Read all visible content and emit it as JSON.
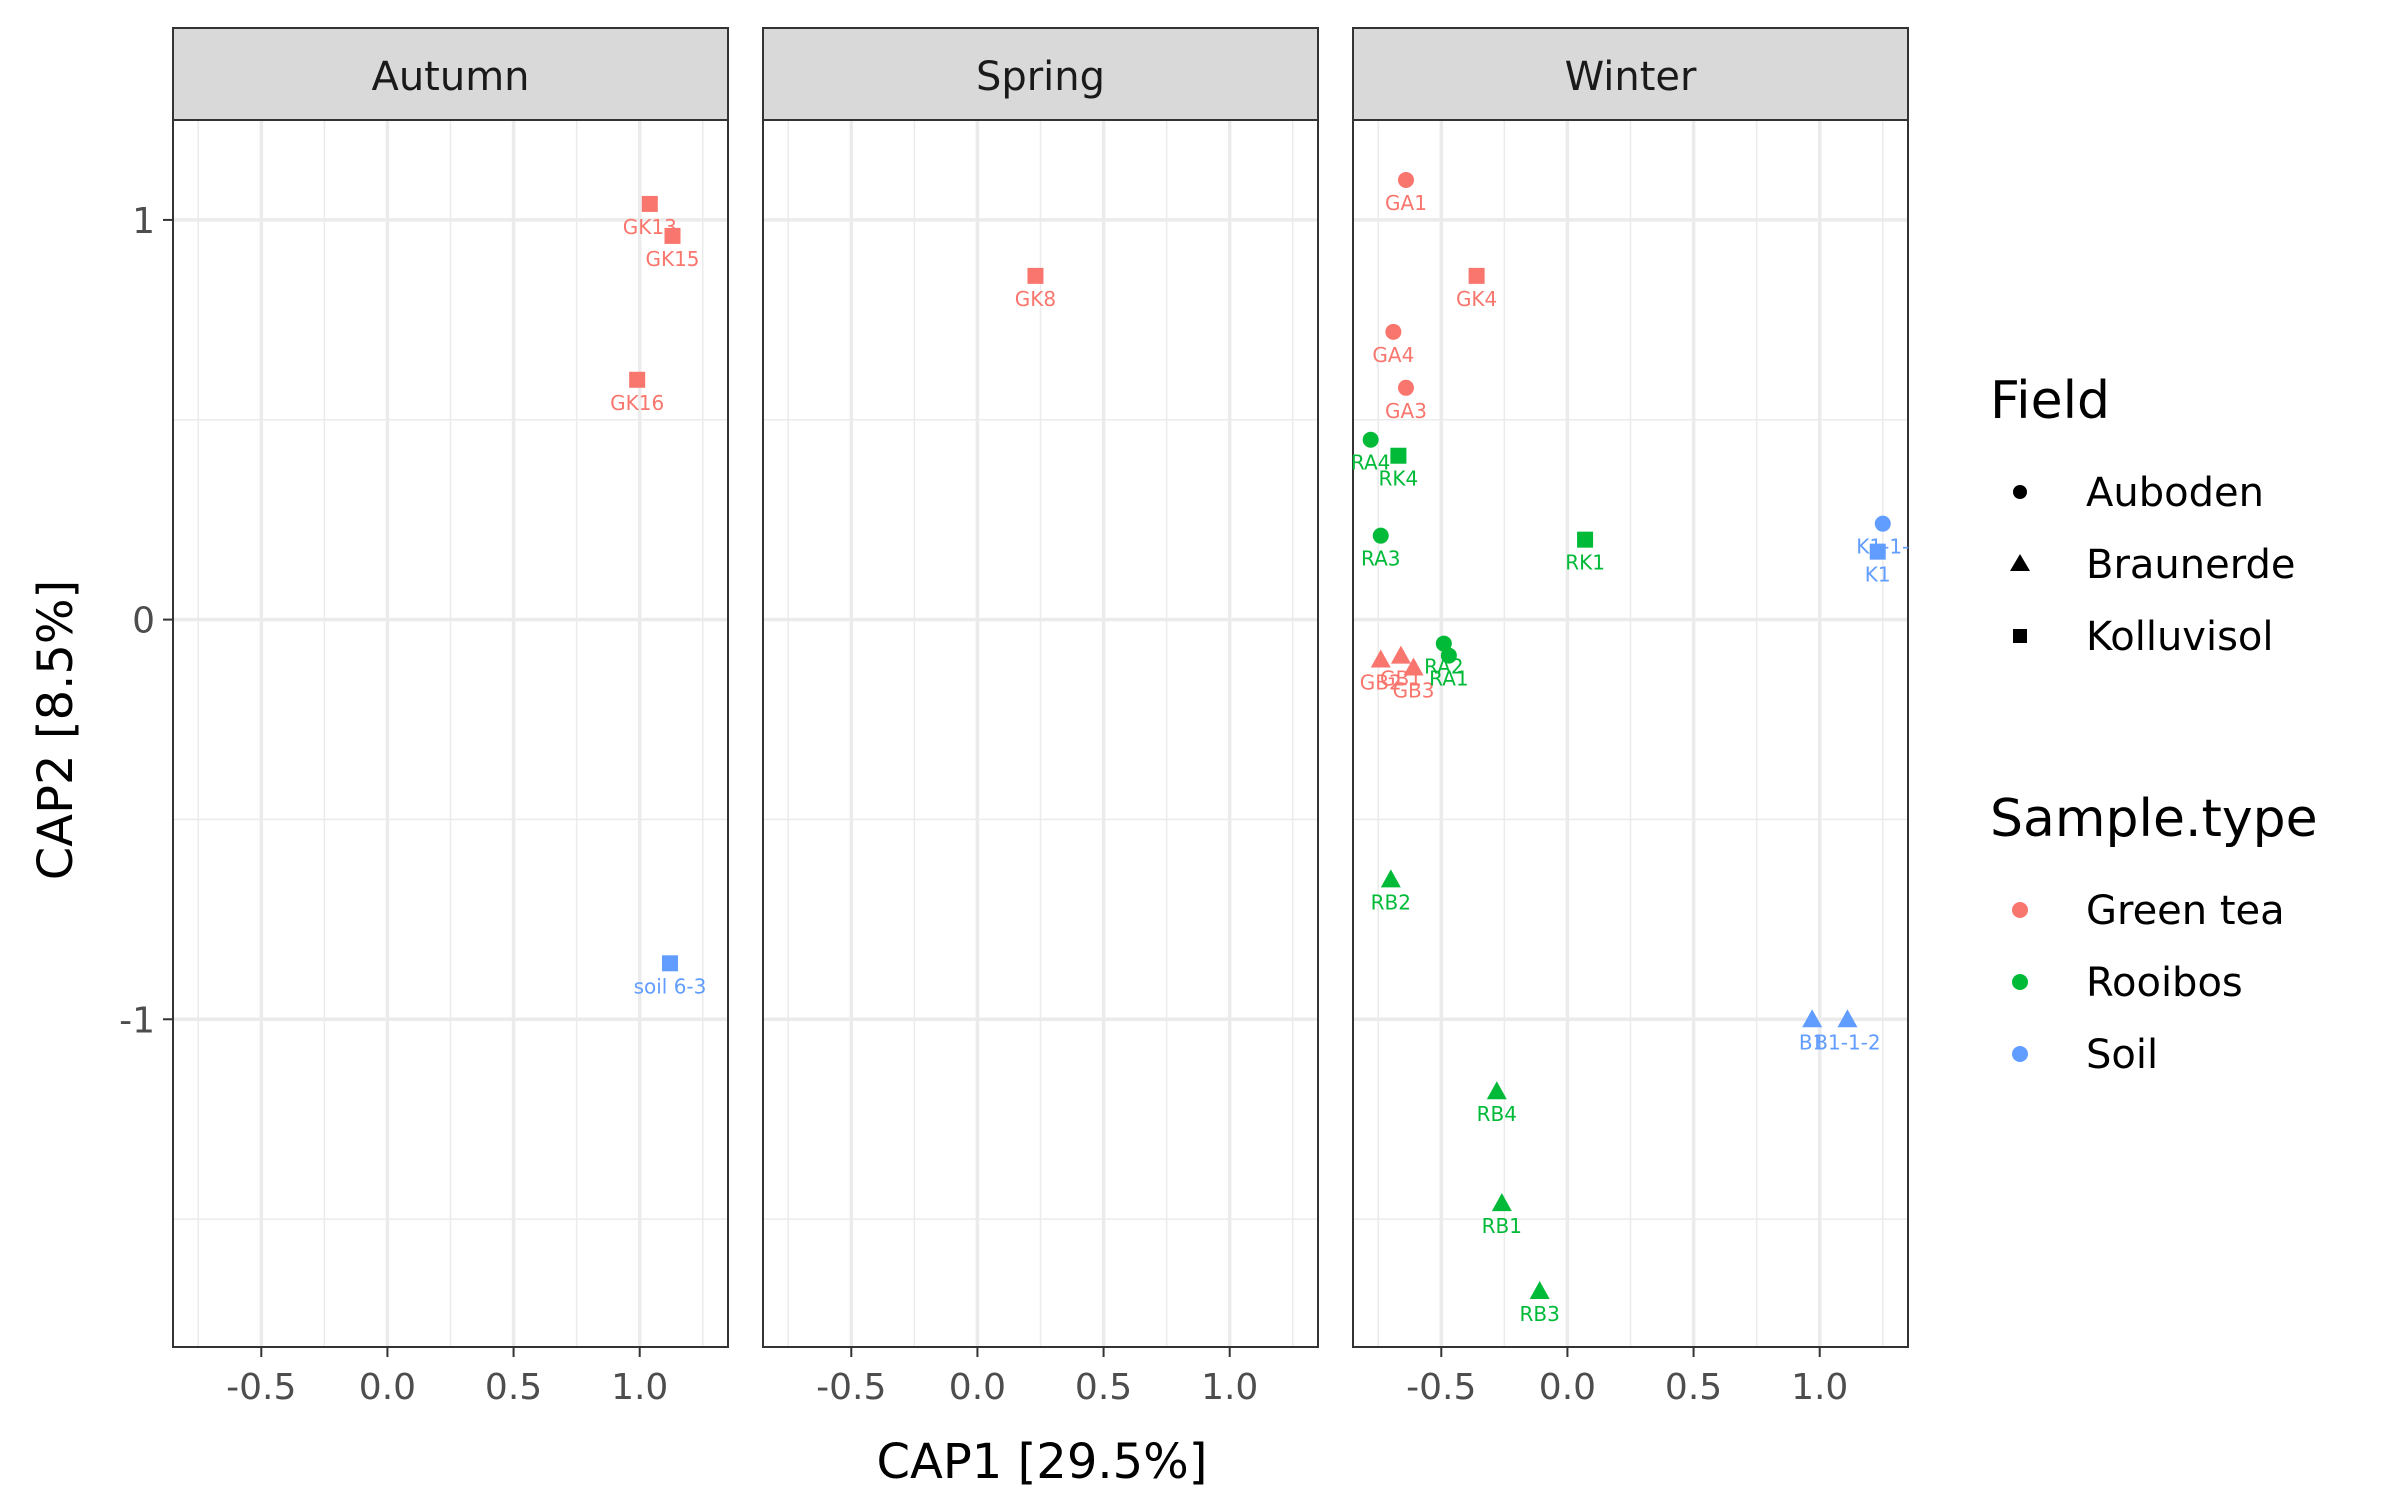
{
  "colors": {
    "Green tea": "#F8766D",
    "Rooibos": "#00BA38",
    "Soil": "#619CFF"
  },
  "chart_data": {
    "type": "scatter",
    "title": "",
    "xlabel": "CAP1   [29.5%]",
    "ylabel": "CAP2   [8.5%]",
    "xlim": [
      -0.85,
      1.35
    ],
    "ylim": [
      -1.82,
      1.25
    ],
    "x_ticks": [
      -0.5,
      0.0,
      0.5,
      1.0
    ],
    "x_tick_labels": [
      "-0.5",
      "0.0",
      "0.5",
      "1.0"
    ],
    "y_ticks": [
      1,
      0,
      -1
    ],
    "y_tick_labels": [
      "1",
      "0",
      "-1"
    ],
    "grid": true,
    "facets": [
      "Autumn",
      "Spring",
      "Winter"
    ],
    "legend_position": "right",
    "legends": [
      {
        "title": "Field",
        "entries": [
          {
            "label": "Auboden",
            "shape": "circle"
          },
          {
            "label": "Braunerde",
            "shape": "triangle"
          },
          {
            "label": "Kolluvisol",
            "shape": "square"
          }
        ]
      },
      {
        "title": "Sample.type",
        "entries": [
          {
            "label": "Green tea",
            "color": "#F8766D"
          },
          {
            "label": "Rooibos",
            "color": "#00BA38"
          },
          {
            "label": "Soil",
            "color": "#619CFF"
          }
        ]
      }
    ],
    "points": [
      {
        "facet": "Autumn",
        "x": 1.04,
        "y": 1.04,
        "label": "GK13",
        "field": "Kolluvisol",
        "type": "Green tea"
      },
      {
        "facet": "Autumn",
        "x": 1.13,
        "y": 0.96,
        "label": "GK15",
        "field": "Kolluvisol",
        "type": "Green tea"
      },
      {
        "facet": "Autumn",
        "x": 0.99,
        "y": 0.6,
        "label": "GK16",
        "field": "Kolluvisol",
        "type": "Green tea"
      },
      {
        "facet": "Autumn",
        "x": 1.12,
        "y": -0.86,
        "label": "soil 6-3",
        "field": "Kolluvisol",
        "type": "Soil"
      },
      {
        "facet": "Spring",
        "x": 0.23,
        "y": 0.86,
        "label": "GK8",
        "field": "Kolluvisol",
        "type": "Green tea"
      },
      {
        "facet": "Winter",
        "x": -0.64,
        "y": 1.1,
        "label": "GA1",
        "field": "Auboden",
        "type": "Green tea"
      },
      {
        "facet": "Winter",
        "x": -0.36,
        "y": 0.86,
        "label": "GK4",
        "field": "Kolluvisol",
        "type": "Green tea"
      },
      {
        "facet": "Winter",
        "x": -0.69,
        "y": 0.72,
        "label": "GA4",
        "field": "Auboden",
        "type": "Green tea"
      },
      {
        "facet": "Winter",
        "x": -0.64,
        "y": 0.58,
        "label": "GA3",
        "field": "Auboden",
        "type": "Green tea"
      },
      {
        "facet": "Winter",
        "x": -0.78,
        "y": 0.45,
        "label": "RA4",
        "field": "Auboden",
        "type": "Rooibos"
      },
      {
        "facet": "Winter",
        "x": -0.67,
        "y": 0.41,
        "label": "RK4",
        "field": "Kolluvisol",
        "type": "Rooibos"
      },
      {
        "facet": "Winter",
        "x": -0.74,
        "y": 0.21,
        "label": "RA3",
        "field": "Auboden",
        "type": "Rooibos"
      },
      {
        "facet": "Winter",
        "x": 0.07,
        "y": 0.2,
        "label": "RK1",
        "field": "Kolluvisol",
        "type": "Rooibos"
      },
      {
        "facet": "Winter",
        "x": 1.25,
        "y": 0.24,
        "label": "K1-1-",
        "field": "Auboden",
        "type": "Soil"
      },
      {
        "facet": "Winter",
        "x": 1.23,
        "y": 0.17,
        "label": "K1",
        "field": "Kolluvisol",
        "type": "Soil"
      },
      {
        "facet": "Winter",
        "x": -0.74,
        "y": -0.1,
        "label": "GB2",
        "field": "Braunerde",
        "type": "Green tea"
      },
      {
        "facet": "Winter",
        "x": -0.66,
        "y": -0.09,
        "label": "GB1",
        "field": "Braunerde",
        "type": "Green tea"
      },
      {
        "facet": "Winter",
        "x": -0.61,
        "y": -0.12,
        "label": "GB3",
        "field": "Braunerde",
        "type": "Green tea"
      },
      {
        "facet": "Winter",
        "x": -0.49,
        "y": -0.06,
        "label": "RA2",
        "field": "Auboden",
        "type": "Rooibos"
      },
      {
        "facet": "Winter",
        "x": -0.47,
        "y": -0.09,
        "label": "RA1",
        "field": "Auboden",
        "type": "Rooibos"
      },
      {
        "facet": "Winter",
        "x": -0.7,
        "y": -0.65,
        "label": "RB2",
        "field": "Braunerde",
        "type": "Rooibos"
      },
      {
        "facet": "Winter",
        "x": 0.97,
        "y": -1.0,
        "label": "B1",
        "field": "Braunerde",
        "type": "Soil"
      },
      {
        "facet": "Winter",
        "x": 1.11,
        "y": -1.0,
        "label": "B1-1-2",
        "field": "Braunerde",
        "type": "Soil"
      },
      {
        "facet": "Winter",
        "x": -0.28,
        "y": -1.18,
        "label": "RB4",
        "field": "Braunerde",
        "type": "Rooibos"
      },
      {
        "facet": "Winter",
        "x": -0.26,
        "y": -1.46,
        "label": "RB1",
        "field": "Braunerde",
        "type": "Rooibos"
      },
      {
        "facet": "Winter",
        "x": -0.11,
        "y": -1.68,
        "label": "RB3",
        "field": "Braunerde",
        "type": "Rooibos"
      }
    ]
  }
}
